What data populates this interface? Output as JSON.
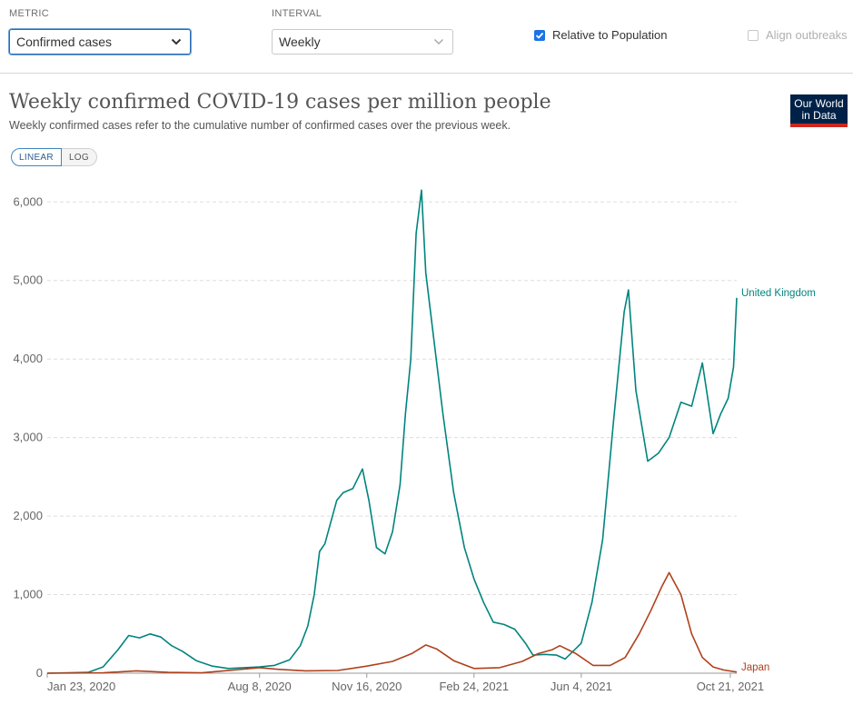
{
  "controls": {
    "metric_label": "METRIC",
    "metric_value": "Confirmed cases",
    "interval_label": "INTERVAL",
    "interval_value": "Weekly",
    "relative_label": "Relative to Population",
    "relative_checked": true,
    "align_label": "Align outbreaks",
    "align_checked": false,
    "accent_color": "#1a73e8"
  },
  "header": {
    "title": "Weekly confirmed COVID-19 cases per million people",
    "subtitle": "Weekly confirmed cases refer to the cumulative number of confirmed cases over the previous week.",
    "logo_line1": "Our World",
    "logo_line2": "in Data"
  },
  "scale_toggle": {
    "linear_label": "LINEAR",
    "log_label": "LOG",
    "active": "LINEAR"
  },
  "chart_data": {
    "type": "line",
    "title": "Weekly confirmed COVID-19 cases per million people",
    "xlabel": "",
    "ylabel": "",
    "x_range": [
      "2020-01-23",
      "2021-10-27"
    ],
    "ylim": [
      0,
      6200
    ],
    "yticks": [
      0,
      1000,
      2000,
      3000,
      4000,
      5000,
      6000
    ],
    "ytick_labels": [
      "0",
      "1,000",
      "2,000",
      "3,000",
      "4,000",
      "5,000",
      "6,000"
    ],
    "xticks": [
      "2020-01-23",
      "2020-08-08",
      "2020-11-16",
      "2021-02-24",
      "2021-06-04",
      "2021-10-21"
    ],
    "xtick_labels": [
      "Jan 23, 2020",
      "Aug 8, 2020",
      "Nov 16, 2020",
      "Feb 24, 2021",
      "Jun 4, 2021",
      "Oct 21, 2021"
    ],
    "grid": "horizontal-dashed",
    "legend": "end-of-line labels",
    "series": [
      {
        "name": "United Kingdom",
        "color": "#00847e",
        "points": [
          [
            "2020-01-23",
            0
          ],
          [
            "2020-03-01",
            10
          ],
          [
            "2020-03-15",
            80
          ],
          [
            "2020-03-29",
            300
          ],
          [
            "2020-04-08",
            480
          ],
          [
            "2020-04-18",
            450
          ],
          [
            "2020-04-28",
            500
          ],
          [
            "2020-05-08",
            460
          ],
          [
            "2020-05-18",
            350
          ],
          [
            "2020-05-28",
            280
          ],
          [
            "2020-06-10",
            160
          ],
          [
            "2020-06-25",
            90
          ],
          [
            "2020-07-10",
            60
          ],
          [
            "2020-07-25",
            70
          ],
          [
            "2020-08-08",
            80
          ],
          [
            "2020-08-22",
            100
          ],
          [
            "2020-09-05",
            170
          ],
          [
            "2020-09-15",
            350
          ],
          [
            "2020-09-22",
            600
          ],
          [
            "2020-09-28",
            1000
          ],
          [
            "2020-10-03",
            1550
          ],
          [
            "2020-10-08",
            1650
          ],
          [
            "2020-10-13",
            1900
          ],
          [
            "2020-10-19",
            2200
          ],
          [
            "2020-10-25",
            2300
          ],
          [
            "2020-11-03",
            2350
          ],
          [
            "2020-11-12",
            2600
          ],
          [
            "2020-11-18",
            2200
          ],
          [
            "2020-11-25",
            1600
          ],
          [
            "2020-12-03",
            1520
          ],
          [
            "2020-12-10",
            1800
          ],
          [
            "2020-12-17",
            2400
          ],
          [
            "2020-12-22",
            3300
          ],
          [
            "2020-12-27",
            4000
          ],
          [
            "2021-01-01",
            5600
          ],
          [
            "2021-01-06",
            6150
          ],
          [
            "2021-01-10",
            5100
          ],
          [
            "2021-01-18",
            4200
          ],
          [
            "2021-01-26",
            3300
          ],
          [
            "2021-02-05",
            2300
          ],
          [
            "2021-02-15",
            1600
          ],
          [
            "2021-02-24",
            1200
          ],
          [
            "2021-03-05",
            900
          ],
          [
            "2021-03-14",
            650
          ],
          [
            "2021-03-24",
            620
          ],
          [
            "2021-04-03",
            560
          ],
          [
            "2021-04-13",
            380
          ],
          [
            "2021-04-20",
            230
          ],
          [
            "2021-05-01",
            240
          ],
          [
            "2021-05-12",
            230
          ],
          [
            "2021-05-20",
            180
          ],
          [
            "2021-06-04",
            380
          ],
          [
            "2021-06-14",
            900
          ],
          [
            "2021-06-24",
            1700
          ],
          [
            "2021-07-04",
            3200
          ],
          [
            "2021-07-14",
            4600
          ],
          [
            "2021-07-18",
            4880
          ],
          [
            "2021-07-25",
            3600
          ],
          [
            "2021-08-05",
            2700
          ],
          [
            "2021-08-15",
            2800
          ],
          [
            "2021-08-25",
            3000
          ],
          [
            "2021-09-05",
            3450
          ],
          [
            "2021-09-15",
            3400
          ],
          [
            "2021-09-25",
            3950
          ],
          [
            "2021-10-05",
            3050
          ],
          [
            "2021-10-12",
            3300
          ],
          [
            "2021-10-19",
            3500
          ],
          [
            "2021-10-24",
            3900
          ],
          [
            "2021-10-27",
            4780
          ]
        ]
      },
      {
        "name": "Japan",
        "color": "#b0401c",
        "points": [
          [
            "2020-01-23",
            0
          ],
          [
            "2020-03-15",
            5
          ],
          [
            "2020-04-15",
            30
          ],
          [
            "2020-05-15",
            10
          ],
          [
            "2020-06-15",
            5
          ],
          [
            "2020-07-15",
            40
          ],
          [
            "2020-08-08",
            70
          ],
          [
            "2020-08-25",
            50
          ],
          [
            "2020-09-20",
            30
          ],
          [
            "2020-10-20",
            35
          ],
          [
            "2020-11-16",
            90
          ],
          [
            "2020-12-10",
            150
          ],
          [
            "2020-12-28",
            250
          ],
          [
            "2021-01-10",
            360
          ],
          [
            "2021-01-20",
            310
          ],
          [
            "2021-02-05",
            160
          ],
          [
            "2021-02-24",
            60
          ],
          [
            "2021-03-20",
            70
          ],
          [
            "2021-04-10",
            150
          ],
          [
            "2021-04-25",
            250
          ],
          [
            "2021-05-08",
            300
          ],
          [
            "2021-05-15",
            350
          ],
          [
            "2021-05-30",
            250
          ],
          [
            "2021-06-15",
            100
          ],
          [
            "2021-07-01",
            100
          ],
          [
            "2021-07-15",
            200
          ],
          [
            "2021-07-28",
            500
          ],
          [
            "2021-08-08",
            800
          ],
          [
            "2021-08-18",
            1100
          ],
          [
            "2021-08-25",
            1280
          ],
          [
            "2021-09-05",
            1000
          ],
          [
            "2021-09-15",
            500
          ],
          [
            "2021-09-25",
            200
          ],
          [
            "2021-10-05",
            80
          ],
          [
            "2021-10-15",
            40
          ],
          [
            "2021-10-27",
            15
          ]
        ]
      }
    ]
  }
}
